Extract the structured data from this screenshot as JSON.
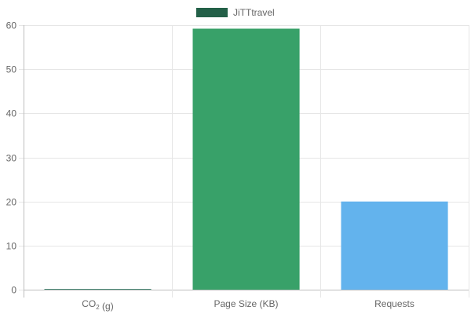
{
  "chart_data": {
    "type": "bar",
    "categories": [
      "CO₂ (g)",
      "Page Size (KB)",
      "Requests"
    ],
    "series": [
      {
        "name": "JiTTtravel",
        "values": [
          0.13,
          59.2,
          20
        ],
        "colors": [
          "#1e6b52",
          "#38a169",
          "#63b3ed"
        ]
      }
    ],
    "legend": {
      "position": "top",
      "swatch_color": "#236048"
    },
    "yticks": [
      0,
      10,
      20,
      30,
      40,
      50,
      60
    ],
    "ylim": [
      0,
      60
    ],
    "grid": true,
    "title": "",
    "xlabel": "",
    "ylabel": ""
  }
}
